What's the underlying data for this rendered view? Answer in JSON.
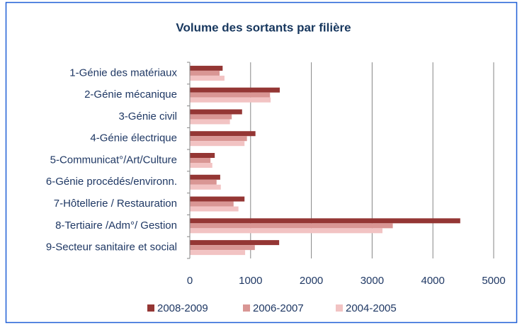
{
  "chart_data": {
    "type": "hbar",
    "title": "Volume des sortants par filière",
    "categories": [
      "1-Génie des matériaux",
      "2-Génie mécanique",
      "3-Génie civil",
      "4-Génie électrique",
      "5-Communicat°/Art/Culture",
      "6-Génie procédés/environn.",
      "7-Hôtellerie / Restauration",
      "8-Tertiaire /Adm°/ Gestion",
      "9-Secteur sanitaire et social"
    ],
    "series": [
      {
        "name": "2008-2009",
        "color": "#943634",
        "values": [
          540,
          1480,
          860,
          1080,
          410,
          500,
          900,
          4450,
          1470
        ]
      },
      {
        "name": "2006-2007",
        "color": "#d99694",
        "values": [
          490,
          1320,
          690,
          940,
          340,
          440,
          720,
          3340,
          1070
        ]
      },
      {
        "name": "2004-2005",
        "color": "#f2c3c3",
        "values": [
          570,
          1330,
          660,
          900,
          370,
          510,
          800,
          3170,
          910
        ]
      }
    ],
    "xlim": [
      0,
      5000
    ],
    "xticks": [
      0,
      1000,
      2000,
      3000,
      4000,
      5000
    ],
    "grid": true,
    "legend": "bottom"
  }
}
